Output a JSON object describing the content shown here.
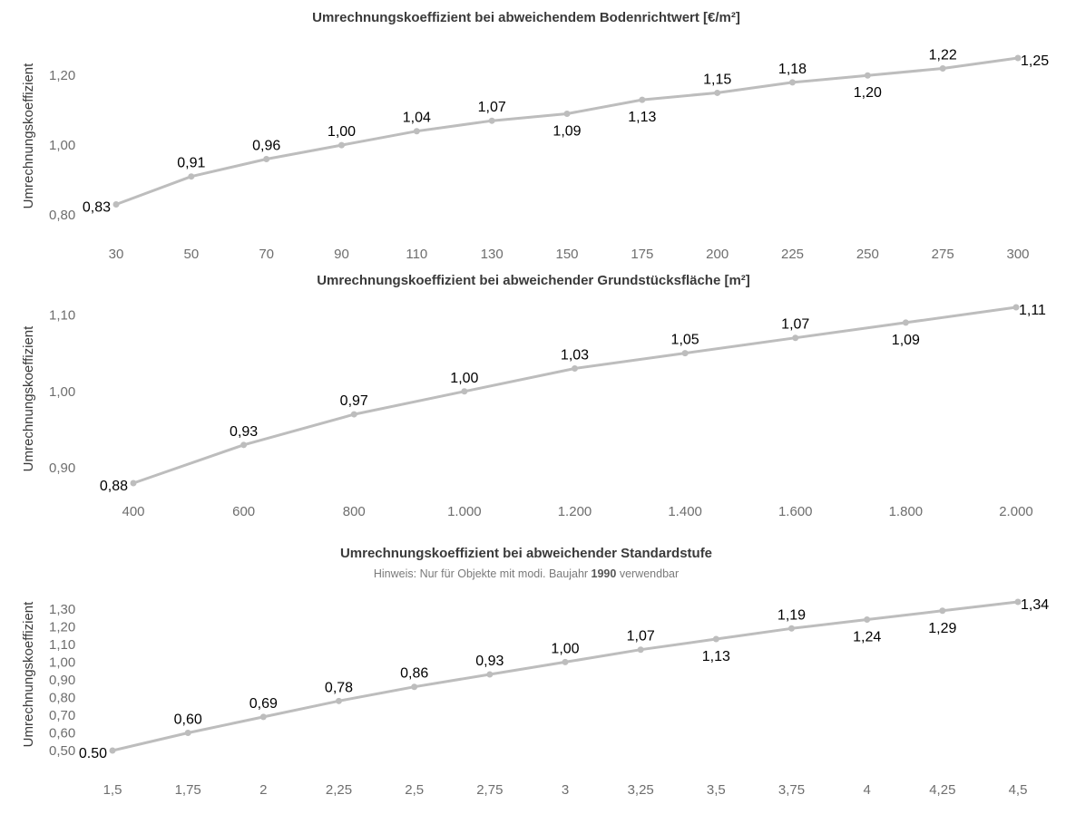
{
  "chart_data": [
    {
      "type": "line",
      "title": "Umrechnungskoeffizient bei abweichendem Bodenrichtwert [€/m²]",
      "subtitle": {
        "prefix": "",
        "bold": "",
        "suffix": ""
      },
      "ylabel": "Umrechnungskoeffizient",
      "xlabel": "",
      "categories": [
        "30",
        "50",
        "70",
        "90",
        "110",
        "130",
        "150",
        "175",
        "200",
        "225",
        "250",
        "275",
        "300"
      ],
      "values": [
        0.83,
        0.91,
        0.96,
        1.0,
        1.04,
        1.07,
        1.09,
        1.13,
        1.15,
        1.18,
        1.2,
        1.22,
        1.25
      ],
      "data_labels": [
        "0,83",
        "0,91",
        "0,96",
        "1,00",
        "1,04",
        "1,07",
        "1,09",
        "1,13",
        "1,15",
        "1,18",
        "1,20",
        "1,22",
        "1,25"
      ],
      "label_pos": [
        "left",
        "above",
        "above",
        "above",
        "above",
        "above",
        "below",
        "below",
        "above",
        "above",
        "below",
        "above",
        "right"
      ],
      "ylim": [
        0.8,
        1.25
      ],
      "y_ticks": [
        {
          "value": 0.8,
          "label": "0,80"
        },
        {
          "value": 1.0,
          "label": "1,00"
        },
        {
          "value": 1.2,
          "label": "1,20"
        }
      ],
      "grid": false,
      "line_color": "#bdbdbd"
    },
    {
      "type": "line",
      "title": "Umrechnungskoeffizient bei abweichender Grundstücksfläche [m²]",
      "subtitle": {
        "prefix": "",
        "bold": "",
        "suffix": ""
      },
      "ylabel": "Umrechnungskoeffizient",
      "xlabel": "",
      "categories": [
        "400",
        "600",
        "800",
        "1.000",
        "1.200",
        "1.400",
        "1.600",
        "1.800",
        "2.000"
      ],
      "values": [
        0.88,
        0.93,
        0.97,
        1.0,
        1.03,
        1.05,
        1.07,
        1.09,
        1.11
      ],
      "data_labels": [
        "0,88",
        "0,93",
        "0,97",
        "1,00",
        "1,03",
        "1,05",
        "1,07",
        "1,09",
        "1,11"
      ],
      "label_pos": [
        "left",
        "above",
        "above",
        "above",
        "above",
        "above",
        "above",
        "below",
        "right"
      ],
      "ylim": [
        0.88,
        1.11
      ],
      "y_ticks": [
        {
          "value": 0.9,
          "label": "0,90"
        },
        {
          "value": 1.0,
          "label": "1,00"
        },
        {
          "value": 1.1,
          "label": "1,10"
        }
      ],
      "grid": false,
      "line_color": "#bdbdbd"
    },
    {
      "type": "line",
      "title": "Umrechnungskoeffizient bei abweichender Standardstufe",
      "subtitle": {
        "prefix": "Hinweis: Nur für Objekte mit modi. Baujahr ",
        "bold": "1990",
        "suffix": " verwendbar"
      },
      "ylabel": "Umrechnungskoeffizient",
      "xlabel": "",
      "categories": [
        "1,5",
        "1,75",
        "2",
        "2,25",
        "2,5",
        "2,75",
        "3",
        "3,25",
        "3,5",
        "3,75",
        "4",
        "4,25",
        "4,5"
      ],
      "values": [
        0.5,
        0.6,
        0.69,
        0.78,
        0.86,
        0.93,
        1.0,
        1.07,
        1.13,
        1.19,
        1.24,
        1.29,
        1.34
      ],
      "data_labels": [
        "0.50",
        "0,60",
        "0,69",
        "0,78",
        "0,86",
        "0,93",
        "1,00",
        "1,07",
        "1,13",
        "1,19",
        "1,24",
        "1,29",
        "1,34"
      ],
      "label_pos": [
        "left",
        "above",
        "above",
        "above",
        "above",
        "above",
        "above",
        "above",
        "below",
        "above",
        "below",
        "below",
        "right"
      ],
      "ylim": [
        0.5,
        1.34
      ],
      "y_ticks": [
        {
          "value": 0.5,
          "label": "0,50"
        },
        {
          "value": 0.6,
          "label": "0,60"
        },
        {
          "value": 0.7,
          "label": "0,70"
        },
        {
          "value": 0.8,
          "label": "0,80"
        },
        {
          "value": 0.9,
          "label": "0,90"
        },
        {
          "value": 1.0,
          "label": "1,00"
        },
        {
          "value": 1.1,
          "label": "1,10"
        },
        {
          "value": 1.2,
          "label": "1,20"
        },
        {
          "value": 1.3,
          "label": "1,30"
        }
      ],
      "grid": false,
      "line_color": "#bdbdbd"
    }
  ]
}
